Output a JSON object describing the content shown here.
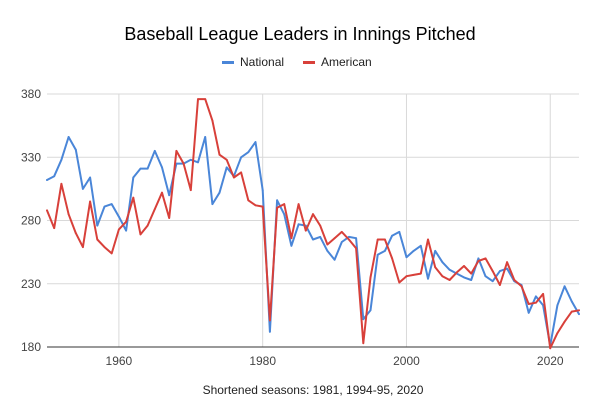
{
  "chart_data": {
    "type": "line",
    "title": "Baseball League Leaders in Innings Pitched",
    "subtitle": "",
    "xlabel": "",
    "ylabel": "",
    "footnote": "Shortened seasons: 1981, 1994-95, 2020",
    "legend_position": "top-center",
    "grid": true,
    "xlim": [
      1950,
      2024
    ],
    "ylim": [
      180,
      380
    ],
    "x_ticks": [
      1960,
      1980,
      2000,
      2020
    ],
    "y_ticks": [
      180,
      230,
      280,
      330,
      380
    ],
    "x": [
      1950,
      1951,
      1952,
      1953,
      1954,
      1955,
      1956,
      1957,
      1958,
      1959,
      1960,
      1961,
      1962,
      1963,
      1964,
      1965,
      1966,
      1967,
      1968,
      1969,
      1970,
      1971,
      1972,
      1973,
      1974,
      1975,
      1976,
      1977,
      1978,
      1979,
      1980,
      1981,
      1982,
      1983,
      1984,
      1985,
      1986,
      1987,
      1988,
      1989,
      1990,
      1991,
      1992,
      1993,
      1994,
      1995,
      1996,
      1997,
      1998,
      1999,
      2000,
      2001,
      2002,
      2003,
      2004,
      2005,
      2006,
      2007,
      2008,
      2009,
      2010,
      2011,
      2012,
      2013,
      2014,
      2015,
      2016,
      2017,
      2018,
      2019,
      2020,
      2021,
      2022,
      2023,
      2024
    ],
    "series": [
      {
        "name": "National",
        "color": "#4a86d8",
        "values": [
          312,
          315,
          328,
          346,
          336,
          305,
          314,
          276,
          291,
          293,
          283,
          272,
          314,
          321,
          321,
          335,
          322,
          300,
          325,
          325,
          328,
          326,
          346,
          293,
          302,
          322,
          315,
          330,
          334,
          342,
          304,
          192,
          296,
          285,
          260,
          277,
          276,
          265,
          267,
          256,
          249,
          263,
          267,
          266,
          202,
          209,
          253,
          256,
          268,
          271,
          251,
          256,
          260,
          234,
          256,
          247,
          241,
          238,
          235,
          233,
          250,
          236,
          232,
          240,
          242,
          232,
          229,
          207,
          220,
          213,
          181,
          213,
          228,
          216,
          206
        ]
      },
      {
        "name": "American",
        "color": "#d8403a",
        "values": [
          288,
          274,
          309,
          285,
          270,
          259,
          295,
          265,
          259,
          254,
          273,
          279,
          298,
          269,
          276,
          289,
          302,
          282,
          335,
          325,
          304,
          376,
          376,
          359,
          332,
          328,
          314,
          318,
          296,
          292,
          291,
          201,
          290,
          293,
          266,
          293,
          272,
          285,
          276,
          261,
          266,
          271,
          265,
          258,
          183,
          235,
          265,
          265,
          250,
          231,
          236,
          237,
          238,
          265,
          243,
          236,
          233,
          239,
          244,
          238,
          248,
          250,
          240,
          229,
          247,
          233,
          228,
          214,
          215,
          222,
          179,
          191,
          200,
          208,
          209
        ]
      }
    ]
  }
}
